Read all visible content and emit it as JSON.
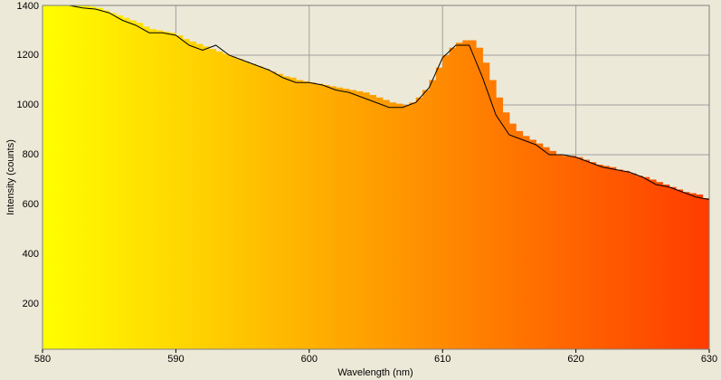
{
  "chart_data": {
    "type": "bar",
    "xlabel": "Wavelength (nm)",
    "ylabel": "Intensity (counts)",
    "xlim": [
      580,
      630
    ],
    "ylim": [
      18,
      1400
    ],
    "xticks": [
      580,
      590,
      600,
      610,
      620,
      630
    ],
    "yticks": [
      200,
      400,
      600,
      800,
      1000,
      1200,
      1400
    ],
    "grid": true,
    "colors": [
      "#ffff00",
      "#ff3c00"
    ],
    "x": [
      580,
      580.5,
      581,
      581.5,
      582,
      582.5,
      583,
      583.5,
      584,
      584.5,
      585,
      585.5,
      586,
      586.5,
      587,
      587.5,
      588,
      588.5,
      589,
      589.5,
      590,
      590.5,
      591,
      591.5,
      592,
      592.5,
      593,
      593.5,
      594,
      594.5,
      595,
      595.5,
      596,
      596.5,
      597,
      597.5,
      598,
      598.5,
      599,
      599.5,
      600,
      600.5,
      601,
      601.5,
      602,
      602.5,
      603,
      603.5,
      604,
      604.5,
      605,
      605.5,
      606,
      606.5,
      607,
      607.5,
      608,
      608.5,
      609,
      609.5,
      610,
      610.5,
      611,
      611.5,
      612,
      612.5,
      613,
      613.5,
      614,
      614.5,
      615,
      615.5,
      616,
      616.5,
      617,
      617.5,
      618,
      618.5,
      619,
      619.5,
      620,
      620.5,
      621,
      621.5,
      622,
      622.5,
      623,
      623.5,
      624,
      624.5,
      625,
      625.5,
      626,
      626.5,
      627,
      627.5,
      628,
      628.5,
      629,
      629.5
    ],
    "values": [
      1400,
      1400,
      1400,
      1400,
      1400,
      1400,
      1400,
      1395,
      1390,
      1380,
      1370,
      1360,
      1350,
      1340,
      1330,
      1315,
      1305,
      1300,
      1295,
      1290,
      1280,
      1265,
      1255,
      1245,
      1235,
      1225,
      1215,
      1205,
      1195,
      1185,
      1175,
      1165,
      1155,
      1145,
      1135,
      1125,
      1115,
      1110,
      1100,
      1095,
      1090,
      1085,
      1080,
      1075,
      1070,
      1065,
      1060,
      1055,
      1050,
      1040,
      1030,
      1020,
      1010,
      1005,
      1000,
      1010,
      1030,
      1060,
      1100,
      1150,
      1200,
      1230,
      1250,
      1260,
      1260,
      1230,
      1170,
      1100,
      1030,
      970,
      925,
      895,
      875,
      860,
      845,
      830,
      815,
      800,
      795,
      795,
      790,
      780,
      770,
      760,
      755,
      750,
      740,
      735,
      725,
      715,
      710,
      700,
      690,
      680,
      670,
      660,
      650,
      645,
      640,
      625
    ],
    "overlay": {
      "type": "line",
      "color": "#000000",
      "x": [
        582,
        583,
        584,
        585,
        586,
        587,
        588,
        589,
        590,
        591,
        592,
        593,
        594,
        595,
        596,
        597,
        598,
        599,
        600,
        601,
        602,
        603,
        604,
        605,
        606,
        607,
        608,
        609,
        610,
        611,
        612,
        613,
        614,
        615,
        616,
        617,
        618,
        619,
        620,
        621,
        622,
        623,
        624,
        625,
        626,
        627,
        628,
        629,
        630
      ],
      "values": [
        1400,
        1390,
        1385,
        1370,
        1340,
        1320,
        1290,
        1290,
        1280,
        1240,
        1220,
        1240,
        1200,
        1180,
        1160,
        1140,
        1110,
        1090,
        1090,
        1080,
        1060,
        1050,
        1030,
        1010,
        990,
        990,
        1010,
        1070,
        1190,
        1240,
        1240,
        1110,
        960,
        880,
        860,
        840,
        800,
        800,
        790,
        770,
        750,
        740,
        730,
        710,
        680,
        670,
        650,
        630,
        620
      ]
    }
  }
}
